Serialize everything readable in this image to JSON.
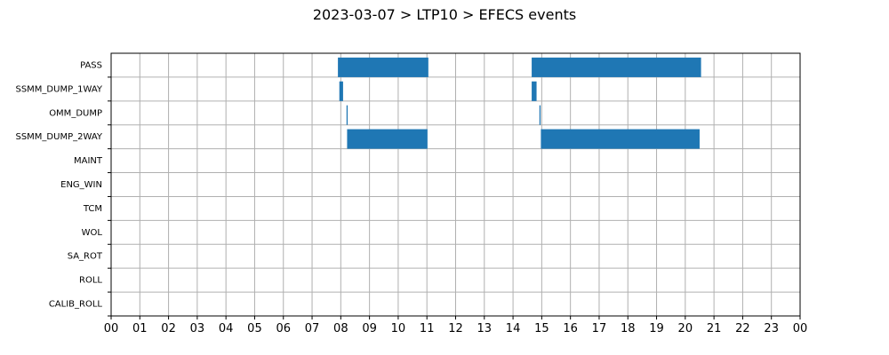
{
  "title": "2023-03-07 > LTP10 > EFECS events",
  "chart_data": {
    "type": "bar",
    "orientation": "horizontal-timeline",
    "title": "2023-03-07 > LTP10 > EFECS events",
    "xlabel": "",
    "ylabel": "",
    "xlim": [
      0,
      24
    ],
    "x_tick_labels": [
      "00",
      "01",
      "02",
      "03",
      "04",
      "05",
      "06",
      "07",
      "08",
      "09",
      "10",
      "11",
      "12",
      "13",
      "14",
      "15",
      "16",
      "17",
      "18",
      "19",
      "20",
      "21",
      "22",
      "23",
      "00"
    ],
    "categories": [
      "PASS",
      "SSMM_DUMP_1WAY",
      "OMM_DUMP",
      "SSMM_DUMP_2WAY",
      "MAINT",
      "ENG_WIN",
      "TCM",
      "WOL",
      "SA_ROT",
      "ROLL",
      "CALIB_ROLL"
    ],
    "grid": true,
    "bar_color": "#1f77b4",
    "events": [
      {
        "category": "PASS",
        "start": 7.9,
        "end": 11.05
      },
      {
        "category": "PASS",
        "start": 14.65,
        "end": 20.55
      },
      {
        "category": "SSMM_DUMP_1WAY",
        "start": 7.95,
        "end": 8.08
      },
      {
        "category": "SSMM_DUMP_1WAY",
        "start": 14.65,
        "end": 14.82
      },
      {
        "category": "OMM_DUMP",
        "start": 8.2,
        "end": 8.24
      },
      {
        "category": "OMM_DUMP",
        "start": 14.92,
        "end": 14.96
      },
      {
        "category": "SSMM_DUMP_2WAY",
        "start": 8.22,
        "end": 11.02
      },
      {
        "category": "SSMM_DUMP_2WAY",
        "start": 14.97,
        "end": 20.5
      }
    ]
  }
}
